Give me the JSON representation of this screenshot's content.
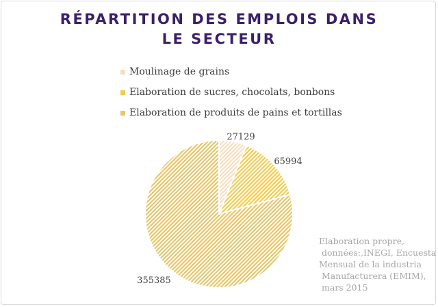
{
  "chart_data": {
    "type": "pie",
    "title_lines": [
      "RÉPARTITION DES EMPLOIS DANS",
      "LE SECTEUR"
    ],
    "categories": [
      "Moulinage de grains",
      "Elaboration de sucres, chocolats, bonbons",
      "Elaboration de produits de pains et tortillas"
    ],
    "values": [
      27129,
      65994,
      355385
    ],
    "data_labels": [
      "27129",
      "65994",
      "355385"
    ],
    "colors": [
      "#f6dfc0",
      "#f3cc4f",
      "#e6c66b"
    ],
    "legend_position": "top",
    "start_angle_deg": 0,
    "hatched": true
  },
  "source_note_lines": [
    "Elaboration propre,",
    " données:,INEGI, Encuesta",
    "Mensual de la industria",
    " Manufacturera (EMIM),",
    " mars 2015"
  ]
}
